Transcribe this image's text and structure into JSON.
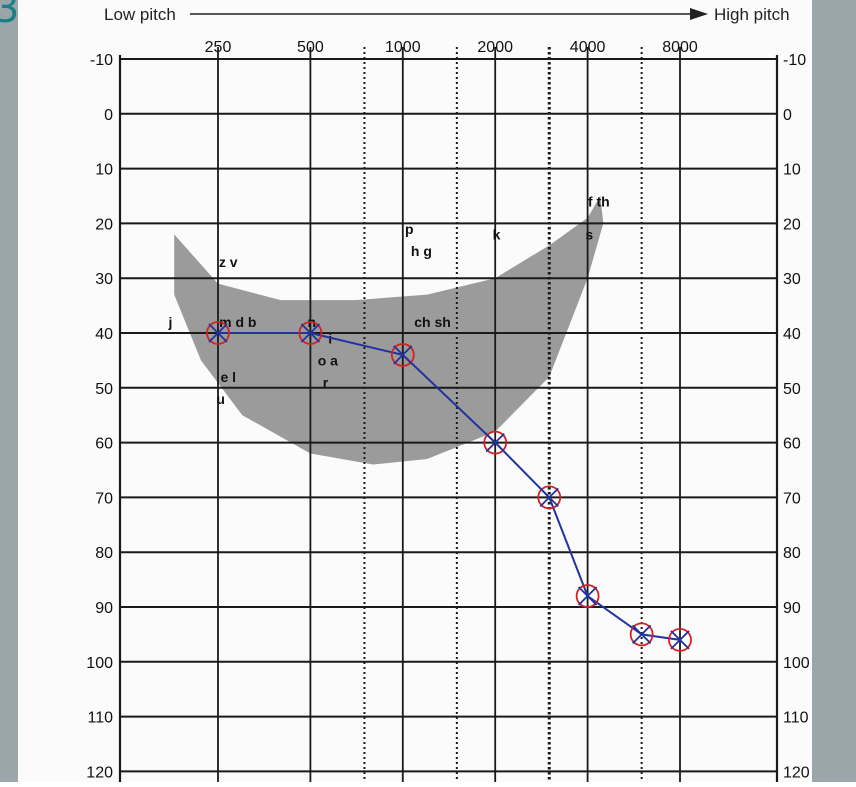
{
  "corner_mark": "3",
  "chart_data": {
    "type": "line",
    "header": {
      "left": "Low pitch",
      "right": "High pitch"
    },
    "x_tick_labels": [
      "250",
      "500",
      "1000",
      "2000",
      "4000",
      "8000"
    ],
    "x_gridlines_hz": [
      {
        "hz": 250,
        "style": "solid"
      },
      {
        "hz": 500,
        "style": "solid"
      },
      {
        "hz": 750,
        "style": "dotted"
      },
      {
        "hz": 1000,
        "style": "solid"
      },
      {
        "hz": 1500,
        "style": "dotted"
      },
      {
        "hz": 2000,
        "style": "solid"
      },
      {
        "hz": 3000,
        "style": "dotted-bold"
      },
      {
        "hz": 4000,
        "style": "solid"
      },
      {
        "hz": 6000,
        "style": "dotted"
      },
      {
        "hz": 8000,
        "style": "solid"
      }
    ],
    "y_tick_labels": [
      "-10",
      "0",
      "10",
      "20",
      "30",
      "40",
      "50",
      "60",
      "70",
      "80",
      "90",
      "100",
      "110",
      "120"
    ],
    "y_values": [
      -10,
      0,
      10,
      20,
      30,
      40,
      50,
      60,
      70,
      80,
      90,
      100,
      110,
      120
    ],
    "ylim": [
      -10,
      120
    ],
    "y_inverted": true,
    "x_scale": "log",
    "grid": true,
    "speech_banana": {
      "color": "#8a8a8a",
      "points": [
        [
          180,
          22
        ],
        [
          250,
          31
        ],
        [
          400,
          34
        ],
        [
          700,
          34
        ],
        [
          1200,
          33
        ],
        [
          2000,
          30
        ],
        [
          3000,
          24
        ],
        [
          4000,
          19
        ],
        [
          4400,
          15
        ],
        [
          4500,
          20
        ],
        [
          4000,
          30
        ],
        [
          3000,
          48
        ],
        [
          2000,
          58
        ],
        [
          1200,
          63
        ],
        [
          800,
          64
        ],
        [
          500,
          62
        ],
        [
          300,
          55
        ],
        [
          220,
          45
        ],
        [
          180,
          33
        ]
      ]
    },
    "phonemes": [
      {
        "text": "z v",
        "x": 270,
        "y": 27
      },
      {
        "text": "j",
        "x": 175,
        "y": 38
      },
      {
        "text": "m d b",
        "x": 290,
        "y": 38
      },
      {
        "text": "n",
        "x": 505,
        "y": 38
      },
      {
        "text": "e l",
        "x": 270,
        "y": 48
      },
      {
        "text": "u",
        "x": 255,
        "y": 52
      },
      {
        "text": "o a",
        "x": 570,
        "y": 45
      },
      {
        "text": "i",
        "x": 580,
        "y": 41
      },
      {
        "text": "r",
        "x": 560,
        "y": 49
      },
      {
        "text": "p",
        "x": 1050,
        "y": 21
      },
      {
        "text": "h g",
        "x": 1150,
        "y": 25
      },
      {
        "text": "ch sh",
        "x": 1250,
        "y": 38
      },
      {
        "text": "k",
        "x": 2020,
        "y": 22
      },
      {
        "text": "f th",
        "x": 4350,
        "y": 16
      },
      {
        "text": "s",
        "x": 4050,
        "y": 22
      }
    ],
    "series": [
      {
        "symbol": "X in O",
        "color_line": "#2233a0",
        "color_marker": "#d42020",
        "points": [
          [
            250,
            40
          ],
          [
            500,
            40
          ],
          [
            1000,
            44
          ],
          [
            2000,
            60
          ],
          [
            3000,
            70
          ],
          [
            4000,
            88
          ],
          [
            6000,
            95
          ],
          [
            8000,
            96
          ]
        ]
      }
    ]
  }
}
